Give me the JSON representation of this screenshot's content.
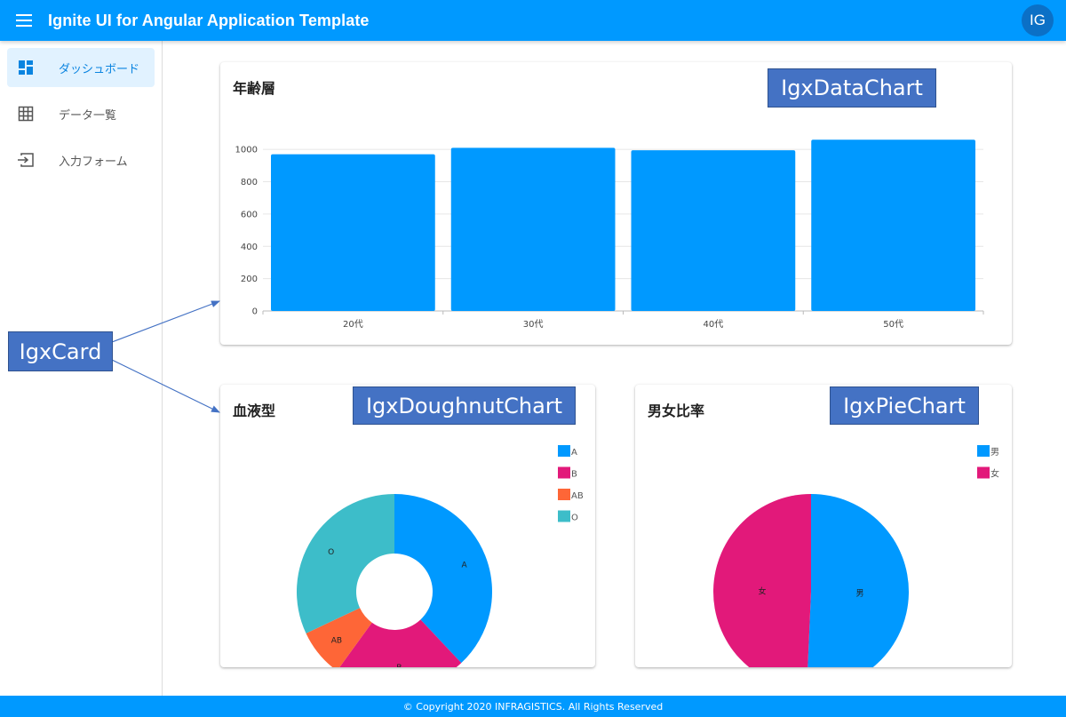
{
  "header": {
    "title": "Ignite UI for Angular Application Template",
    "avatar_initials": "IG",
    "menu_icon": "hamburger-icon"
  },
  "sidebar": {
    "items": [
      {
        "label": "ダッシュボード",
        "icon": "dashboard-icon",
        "active": true
      },
      {
        "label": "データ一覧",
        "icon": "grid-icon",
        "active": false
      },
      {
        "label": "入力フォーム",
        "icon": "input-icon",
        "active": false
      }
    ]
  },
  "cards": {
    "age": {
      "title": "年齢層"
    },
    "blood": {
      "title": "血液型"
    },
    "gender": {
      "title": "男女比率"
    }
  },
  "annotations": {
    "data_chart": "IgxDataChart",
    "doughnut_chart": "IgxDoughnutChart",
    "pie_chart": "IgxPieChart",
    "card": "IgxCard"
  },
  "chart_data": [
    {
      "type": "bar",
      "title": "年齢層",
      "categories": [
        "20代",
        "30代",
        "40代",
        "50代"
      ],
      "values": [
        970,
        1010,
        995,
        1060
      ],
      "ylim": [
        0,
        1100
      ],
      "yticks": [
        0,
        200,
        400,
        600,
        800,
        1000
      ],
      "color": "#0099ff",
      "grid": true
    },
    {
      "type": "pie",
      "variant": "doughnut",
      "title": "血液型",
      "labels": [
        "A",
        "B",
        "AB",
        "O"
      ],
      "values": [
        38,
        22,
        8,
        32
      ],
      "colors": [
        "#0099ff",
        "#e2197a",
        "#fe6637",
        "#3dbdc9"
      ],
      "legend": "top-right"
    },
    {
      "type": "pie",
      "title": "男女比率",
      "labels": [
        "男",
        "女"
      ],
      "values": [
        50.7,
        49.3
      ],
      "colors": [
        "#0099ff",
        "#e2197a"
      ],
      "legend": "top-right"
    }
  ],
  "footer": {
    "text": "© Copyright 2020 INFRAGISTICS. All Rights Reserved"
  }
}
